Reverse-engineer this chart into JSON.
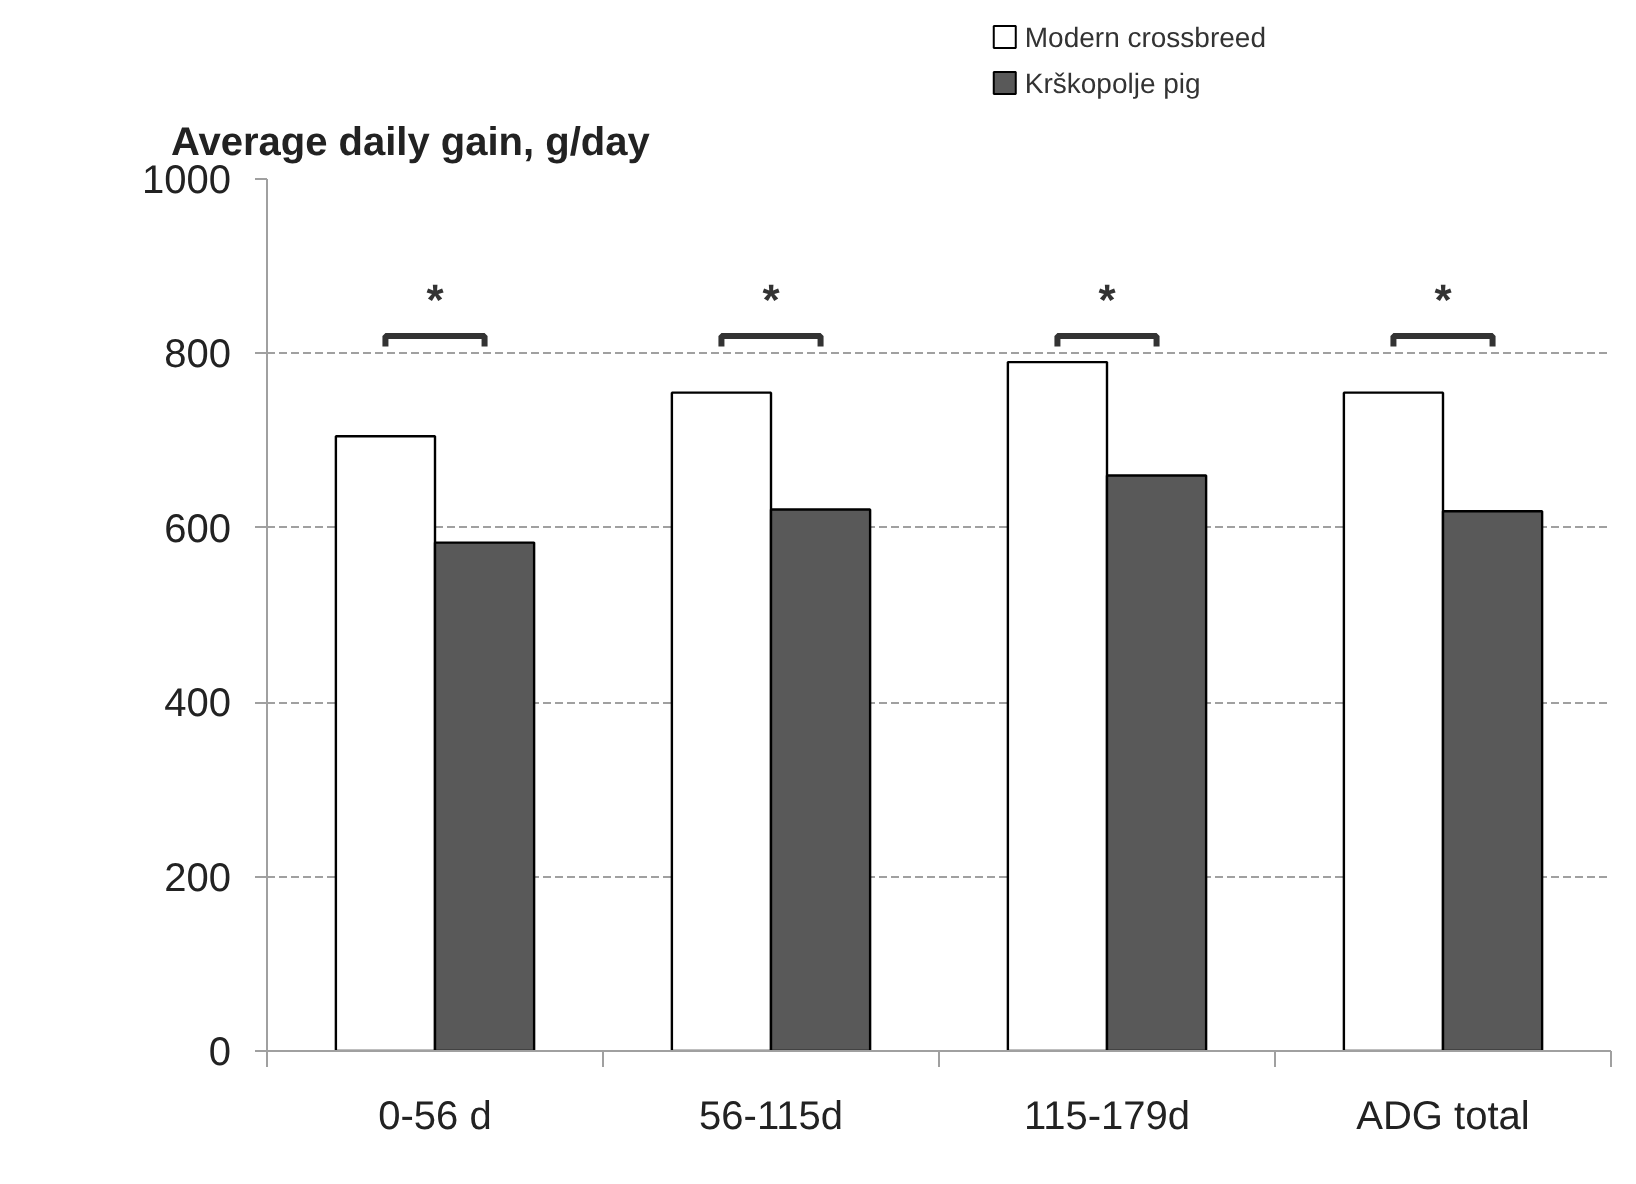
{
  "chart_data": {
    "type": "bar",
    "title": "Average daily gain, g/day",
    "categories": [
      "0-56 d",
      "56-115d",
      "115-179d",
      "ADG total"
    ],
    "series": [
      {
        "name": "Modern crossbreed",
        "color": "#ffffff",
        "values": [
          705,
          755,
          790,
          755
        ]
      },
      {
        "name": "Krškopolje pig",
        "color": "#595959",
        "values": [
          583,
          621,
          660,
          619
        ]
      }
    ],
    "ylim": [
      0,
      1000
    ],
    "yticks": [
      0,
      200,
      400,
      600,
      800,
      1000
    ],
    "grid": "y",
    "legend": "top right",
    "annotations": [
      "*",
      "*",
      "*",
      "*"
    ]
  }
}
